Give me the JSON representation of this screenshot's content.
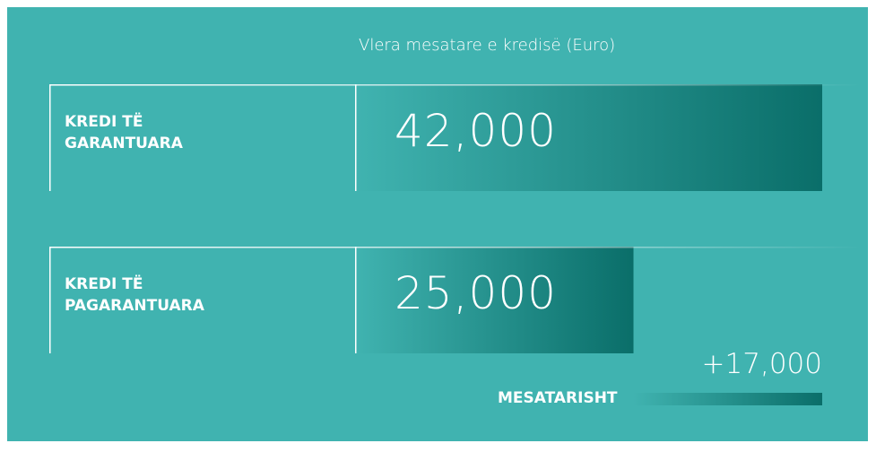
{
  "chart_data": {
    "type": "bar",
    "orientation": "horizontal",
    "title": "Vlera mesatare e kredisë (Euro)",
    "categories": [
      "KREDI TË GARANTUARA",
      "KREDI TË PAGARANTUARA"
    ],
    "values": [
      42000,
      25000
    ],
    "value_labels": [
      "42,000",
      "25,000"
    ],
    "color": "#0a6e69",
    "xlim": [
      0,
      42000
    ],
    "difference": {
      "value": 17000,
      "label": "+17,000",
      "caption": "MESATARISHT"
    }
  }
}
